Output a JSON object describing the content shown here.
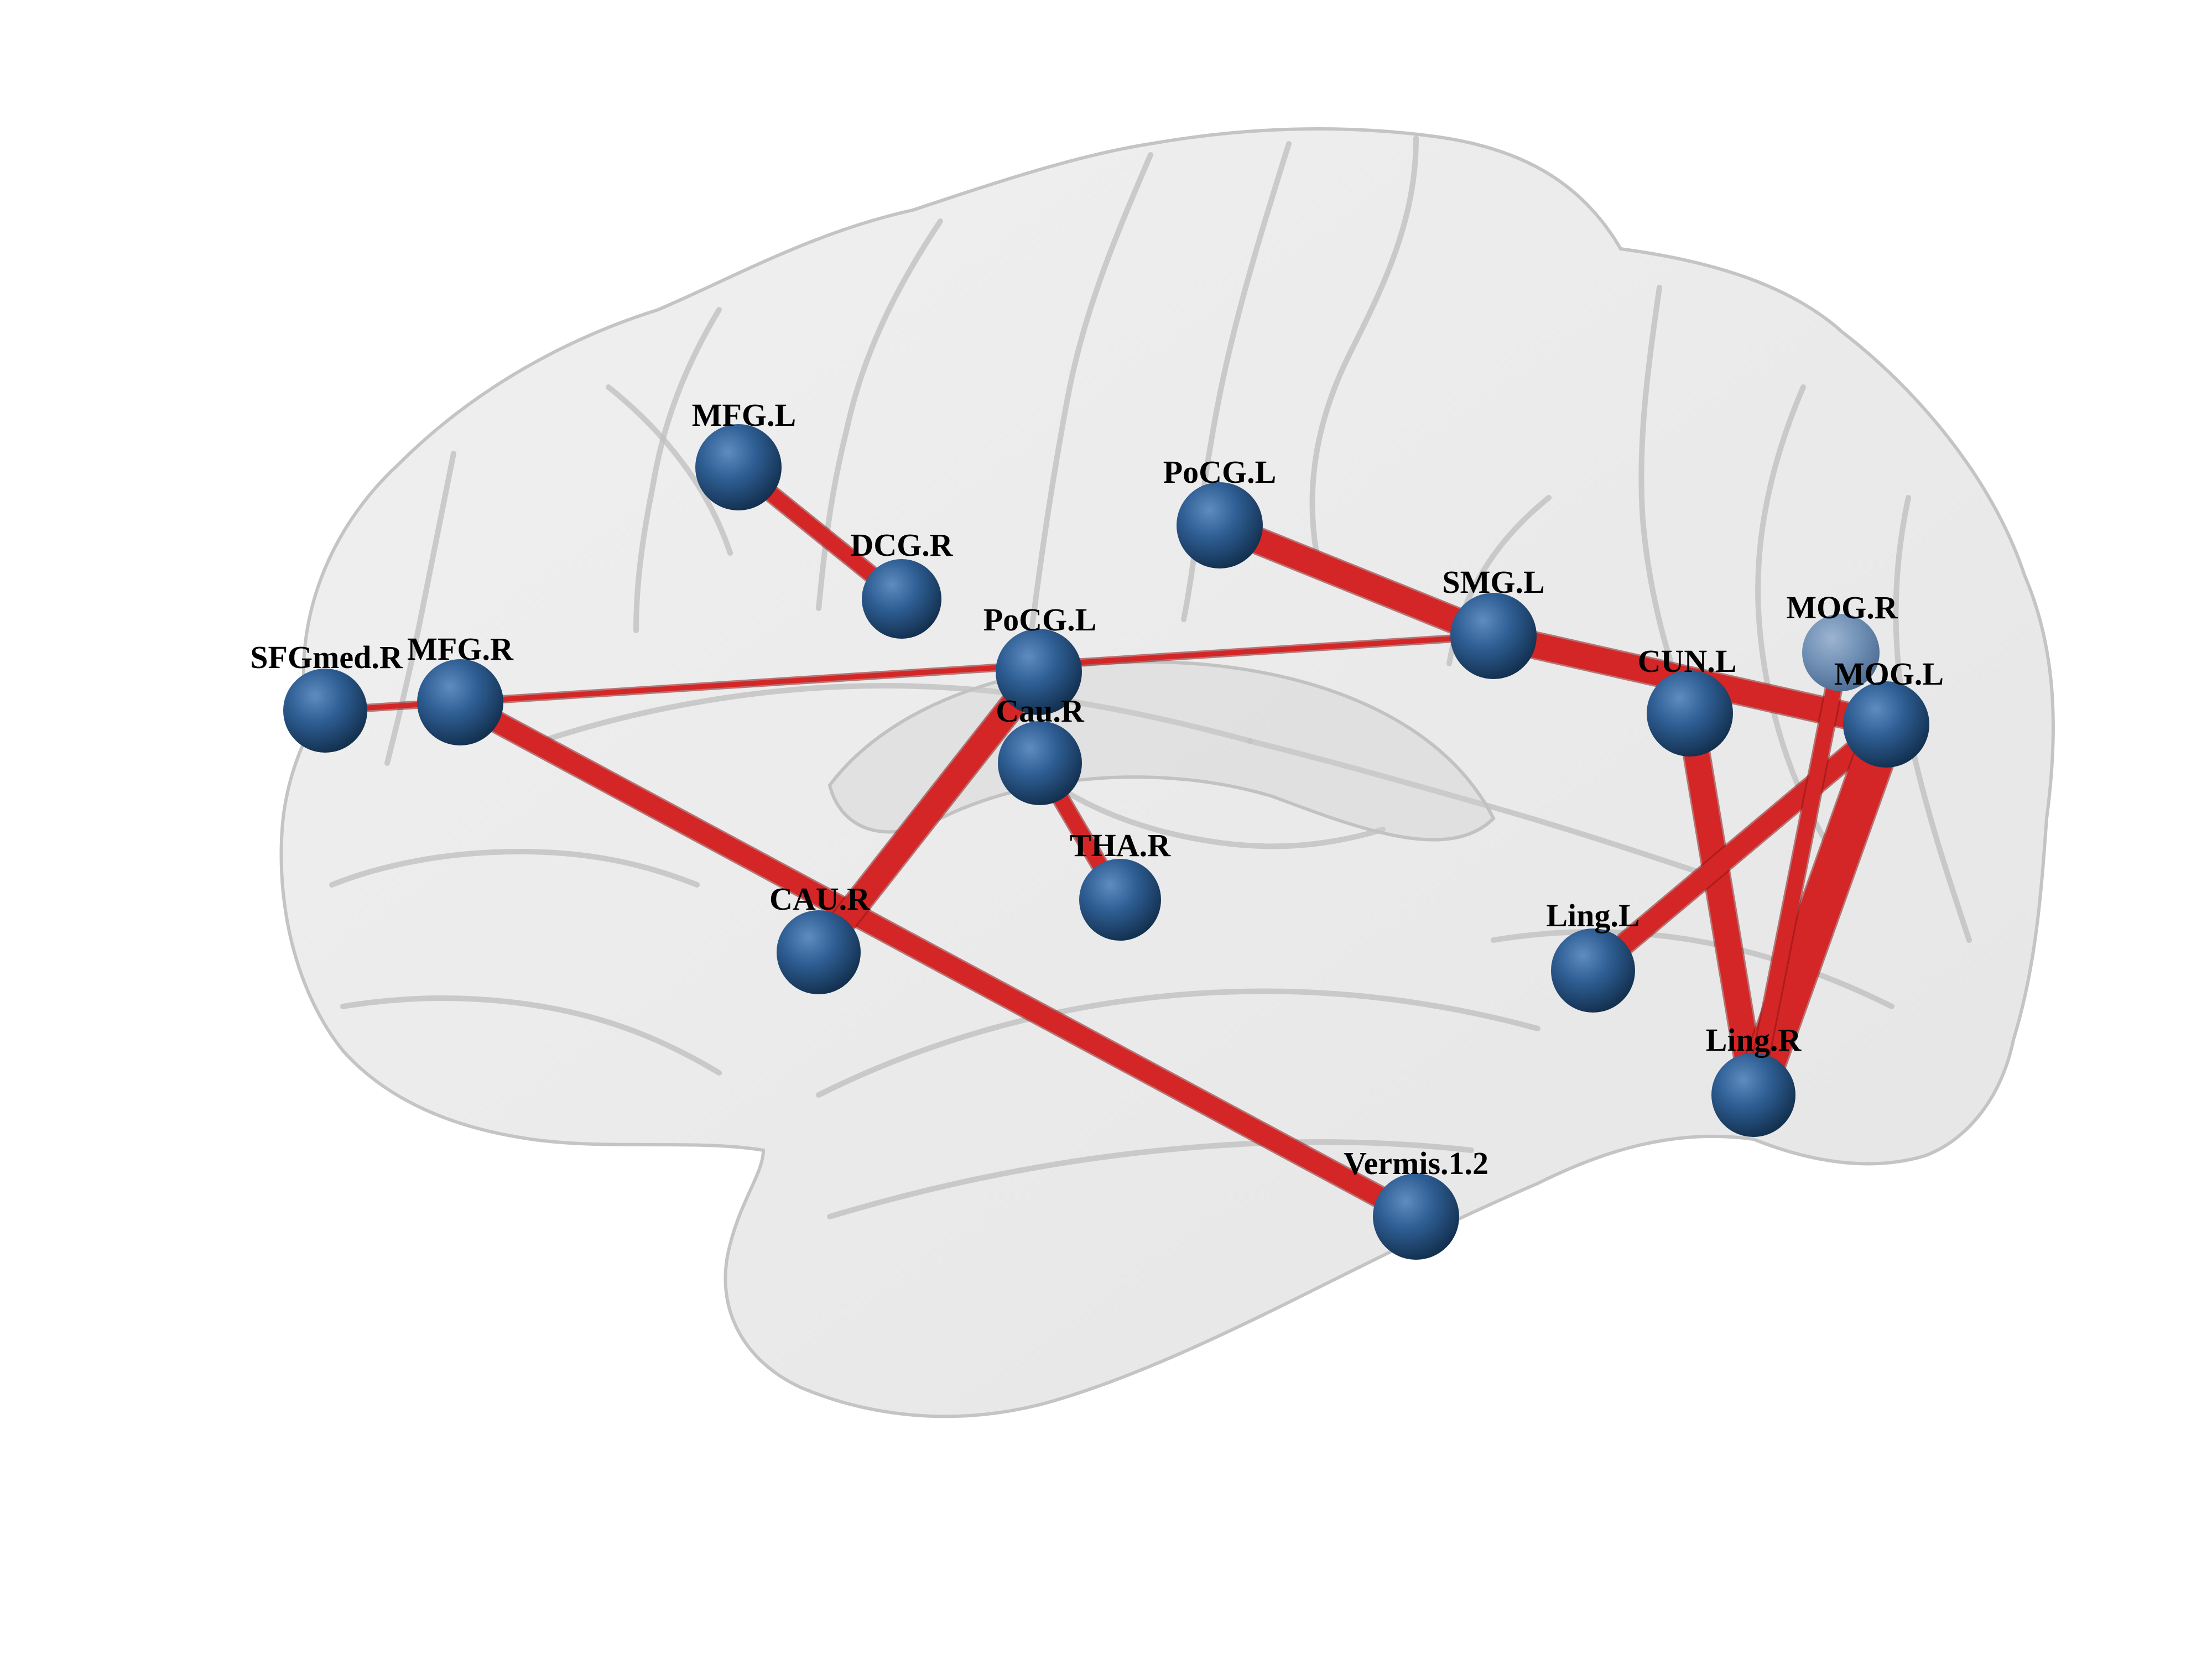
{
  "colors": {
    "background": "#ffffff",
    "brain_surface": "#d9d9d9",
    "node": "#2b5a8c",
    "edge": "#d42626",
    "label": "#000000"
  },
  "nodes": [
    {
      "id": "MFG_L",
      "label": "MFG.L"
    },
    {
      "id": "DCG_R",
      "label": "DCG.R"
    },
    {
      "id": "PoCG_L_upper",
      "label": "PoCG.L"
    },
    {
      "id": "SMG_L",
      "label": "SMG.L"
    },
    {
      "id": "MOG_R",
      "label": "MOG.R"
    },
    {
      "id": "CUN_L",
      "label": "CUN.L"
    },
    {
      "id": "MOG_L",
      "label": "MOG.L"
    },
    {
      "id": "SFGmed_R",
      "label": "SFGmed.R"
    },
    {
      "id": "MFG_R",
      "label": "MFG.R"
    },
    {
      "id": "PoCG_L_center",
      "label": "PoCG.L"
    },
    {
      "id": "Cau_R",
      "label": "Cau.R"
    },
    {
      "id": "THA_R",
      "label": "THA.R"
    },
    {
      "id": "CAU_R",
      "label": "CAU.R"
    },
    {
      "id": "Ling_L",
      "label": "Ling.L"
    },
    {
      "id": "Ling_R",
      "label": "Ling.R"
    },
    {
      "id": "Vermis_1_2",
      "label": "Vermis.1.2"
    }
  ],
  "edges": [
    {
      "source": "MFG_L",
      "target": "DCG_R",
      "weight": 3
    },
    {
      "source": "PoCG_L_upper",
      "target": "SMG_L",
      "weight": 5
    },
    {
      "source": "SMG_L",
      "target": "MOG_L",
      "weight": 5
    },
    {
      "source": "SFGmed_R",
      "target": "SMG_L",
      "weight": 1
    },
    {
      "source": "MFG_R",
      "target": "Vermis_1_2",
      "weight": 4
    },
    {
      "source": "PoCG_L_center",
      "target": "CAU_R",
      "weight": 5
    },
    {
      "source": "Cau_R",
      "target": "THA_R",
      "weight": 3
    },
    {
      "source": "CUN_L",
      "target": "Ling_R",
      "weight": 5
    },
    {
      "source": "MOG_L",
      "target": "Ling_L",
      "weight": 4
    },
    {
      "source": "MOG_L",
      "target": "Ling_R",
      "weight": 8
    },
    {
      "source": "MOG_R",
      "target": "Ling_R",
      "weight": 3
    }
  ]
}
